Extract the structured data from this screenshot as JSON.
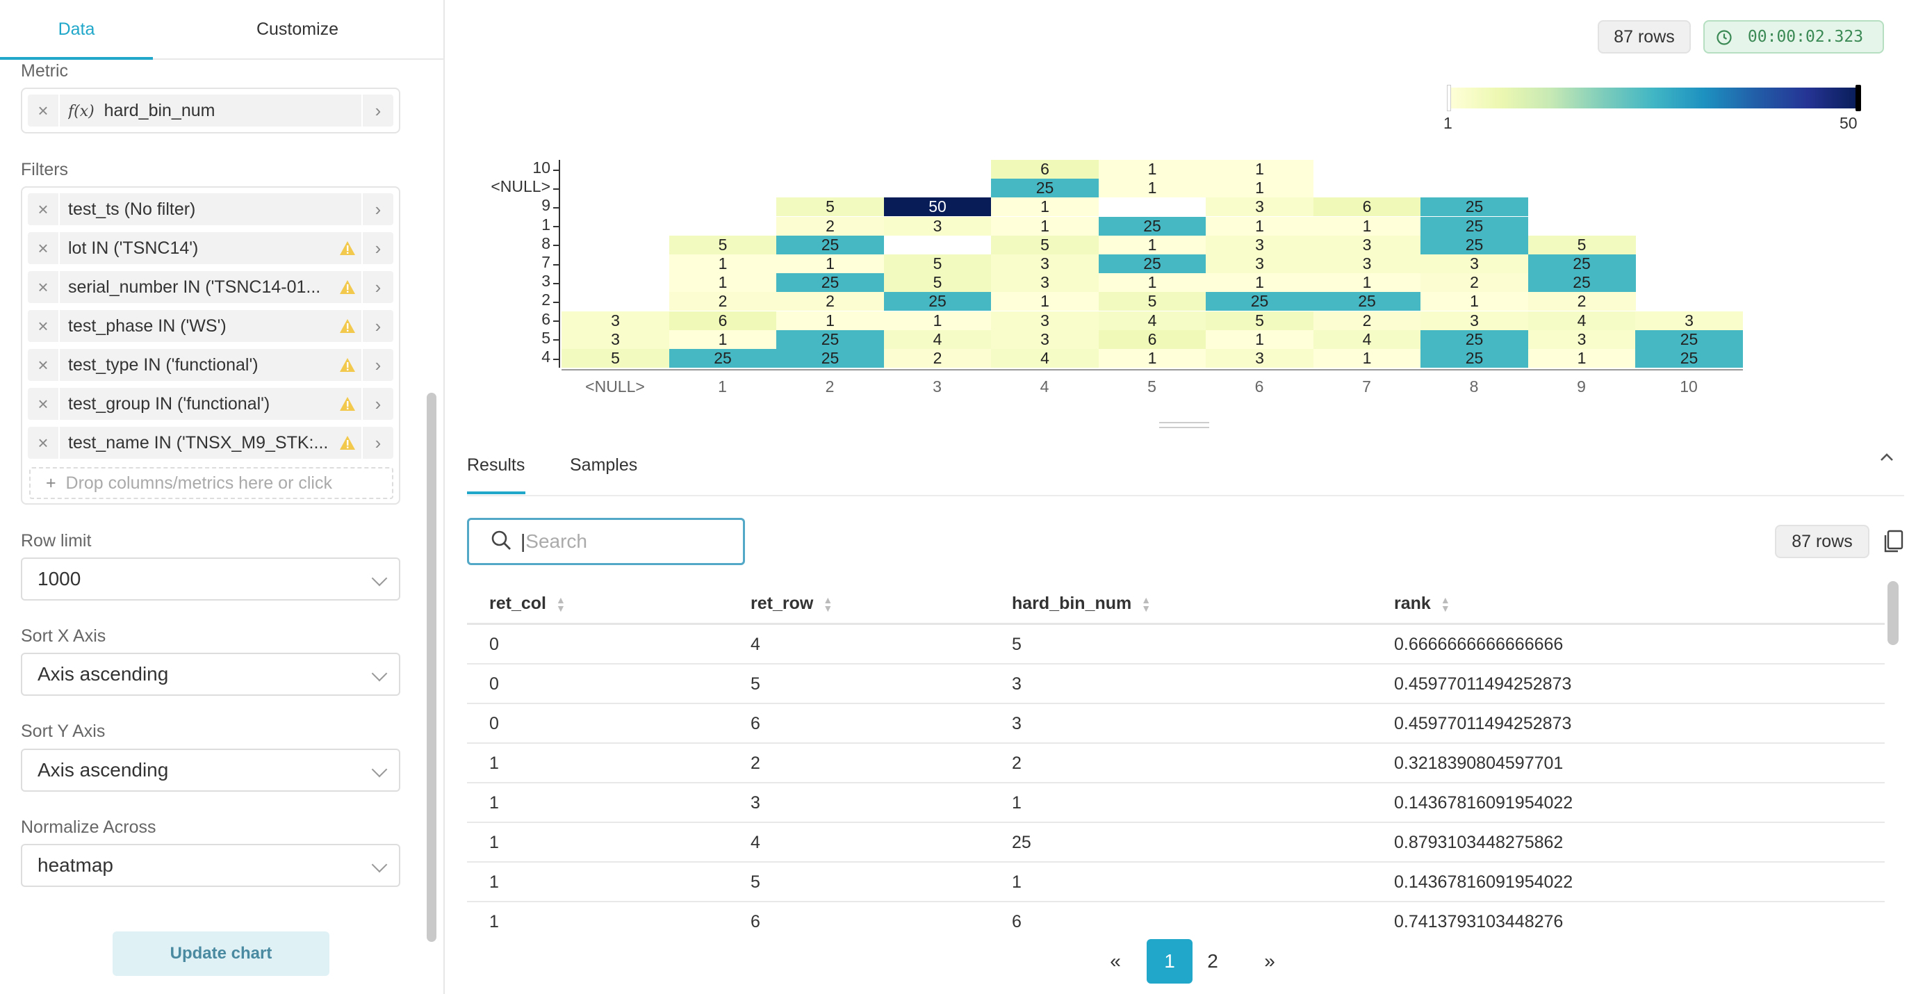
{
  "left_tabs": {
    "data": "Data",
    "customize": "Customize"
  },
  "metric": {
    "label": "Metric",
    "fx": "ƒ(x)",
    "value": "hard_bin_num"
  },
  "filters": {
    "label": "Filters",
    "items": [
      {
        "text": "test_ts (No filter)",
        "warn": false
      },
      {
        "text": "lot IN ('TSNC14')",
        "warn": true
      },
      {
        "text": "serial_number IN ('TSNC14-01...",
        "warn": true
      },
      {
        "text": "test_phase IN ('WS')",
        "warn": true
      },
      {
        "text": "test_type IN ('functional')",
        "warn": true
      },
      {
        "text": "test_group IN ('functional')",
        "warn": true
      },
      {
        "text": "test_name IN ('TNSX_M9_STK:...",
        "warn": true
      }
    ],
    "drop_text": "Drop columns/metrics here or click"
  },
  "row_limit": {
    "label": "Row limit",
    "value": "1000"
  },
  "sort_x": {
    "label": "Sort X Axis",
    "value": "Axis ascending"
  },
  "sort_y": {
    "label": "Sort Y Axis",
    "value": "Axis ascending"
  },
  "normalize": {
    "label": "Normalize Across",
    "value": "heatmap"
  },
  "update_button": "Update chart",
  "header": {
    "rows": "87 rows",
    "time": "00:00:02.323"
  },
  "legend": {
    "min": "1",
    "max": "50"
  },
  "chart_data": {
    "type": "heatmap",
    "x_categories": [
      "<NULL>",
      "1",
      "2",
      "3",
      "4",
      "5",
      "6",
      "7",
      "8",
      "9",
      "10"
    ],
    "y_categories": [
      "10",
      "<NULL>",
      "9",
      "1",
      "8",
      "7",
      "3",
      "2",
      "6",
      "5",
      "4"
    ],
    "values": [
      [
        null,
        null,
        null,
        null,
        6,
        1,
        1,
        null,
        null,
        null,
        null
      ],
      [
        null,
        null,
        null,
        null,
        25,
        1,
        1,
        null,
        null,
        null,
        null
      ],
      [
        null,
        null,
        5,
        50,
        1,
        null,
        3,
        6,
        25,
        null,
        null
      ],
      [
        null,
        null,
        2,
        3,
        1,
        25,
        1,
        1,
        25,
        null,
        null
      ],
      [
        null,
        5,
        25,
        null,
        5,
        1,
        3,
        3,
        25,
        5,
        null
      ],
      [
        null,
        1,
        1,
        5,
        3,
        25,
        3,
        3,
        3,
        25,
        null
      ],
      [
        null,
        1,
        25,
        5,
        3,
        1,
        1,
        1,
        2,
        25,
        null
      ],
      [
        null,
        2,
        2,
        25,
        1,
        5,
        25,
        25,
        1,
        2,
        null
      ],
      [
        3,
        6,
        1,
        1,
        3,
        4,
        5,
        2,
        3,
        4,
        3
      ],
      [
        3,
        1,
        25,
        4,
        3,
        6,
        1,
        4,
        25,
        3,
        25
      ],
      [
        5,
        25,
        25,
        2,
        4,
        1,
        3,
        1,
        25,
        1,
        25
      ]
    ],
    "color_range": [
      1,
      50
    ],
    "colors": [
      "#ffffd9",
      "#edf8b1",
      "#c7e9b4",
      "#7fcdbb",
      "#41b6c4",
      "#1d91c0",
      "#225ea8",
      "#253494",
      "#081d58"
    ]
  },
  "results_tabs": {
    "results": "Results",
    "samples": "Samples"
  },
  "search": {
    "placeholder": "Search"
  },
  "table_rows_badge": "87 rows",
  "table": {
    "columns": [
      "ret_col",
      "ret_row",
      "hard_bin_num",
      "rank"
    ],
    "rows": [
      [
        "0",
        "4",
        "5",
        "0.6666666666666666"
      ],
      [
        "0",
        "5",
        "3",
        "0.45977011494252873"
      ],
      [
        "0",
        "6",
        "3",
        "0.45977011494252873"
      ],
      [
        "1",
        "2",
        "2",
        "0.3218390804597701"
      ],
      [
        "1",
        "3",
        "1",
        "0.14367816091954022"
      ],
      [
        "1",
        "4",
        "25",
        "0.8793103448275862"
      ],
      [
        "1",
        "5",
        "1",
        "0.14367816091954022"
      ],
      [
        "1",
        "6",
        "6",
        "0.7413793103448276"
      ]
    ]
  },
  "pagination": {
    "prev": "«",
    "pages": [
      "1",
      "2"
    ],
    "next": "»"
  }
}
